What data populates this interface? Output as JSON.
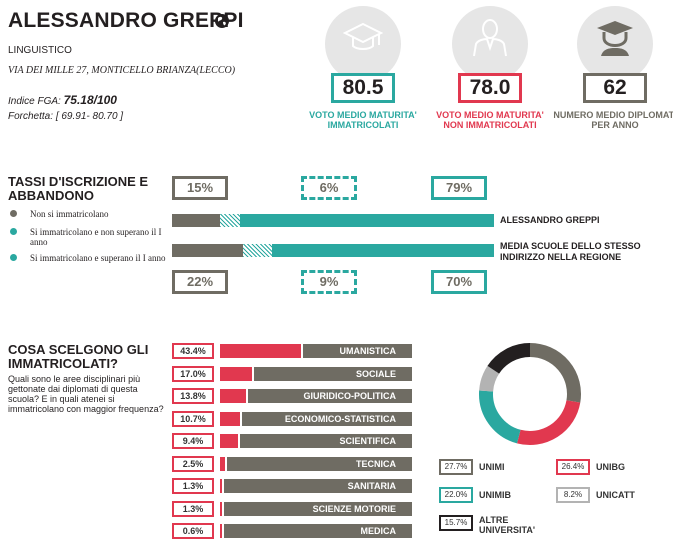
{
  "school": {
    "name": "ALESSANDRO GREPPI",
    "type": "LINGUISTICO",
    "address": "VIA DEI MILLE 27, MONTICELLO BRIANZA(LECCO)",
    "fga_label": "Indice FGA:",
    "fga_value": "75.18/100",
    "range_label": "Forchetta:",
    "range_value": "[ 69.91- 80.70 ]"
  },
  "kpis": [
    {
      "value": "80.5",
      "label": "VOTO MEDIO MATURITA' IMMATRICOLATI",
      "color": "#2aa8a0",
      "icon": "graduation-cap-icon"
    },
    {
      "value": "78.0",
      "label": "VOTO MEDIO MATURITA' NON IMMATRICOLATI",
      "color": "#e1384f",
      "icon": "person-icon"
    },
    {
      "value": "62",
      "label": "NUMERO MEDIO DIPLOMATI PER ANNO",
      "color": "#6f6c63",
      "icon": "graduate-icon"
    }
  ],
  "enrollment": {
    "title": "TASSI D'ISCRIZIONE E ABBANDONO",
    "legend": [
      {
        "text": "Non si immatricolano",
        "color": "#6f6c63"
      },
      {
        "text": "Si immatricolano e non superano il I anno",
        "color": "#2aa8a0"
      },
      {
        "text": "Si immatricolano e superano il I anno",
        "color": "#2aa8a0"
      }
    ],
    "school_bar": {
      "label": "ALESSANDRO GREPPI",
      "not_enrolled": 15,
      "dropout": 6,
      "passed": 79,
      "labels": [
        "15%",
        "6%",
        "79%"
      ]
    },
    "region_bar": {
      "label": "MEDIA SCUOLE DELLO STESSO INDIRIZZO NELLA REGIONE",
      "not_enrolled": 22,
      "dropout": 9,
      "passed": 70,
      "labels": [
        "22%",
        "9%",
        "70%"
      ]
    }
  },
  "choices": {
    "title": "COSA SCELGONO GLI IMMATRICOLATI?",
    "question": "Quali sono le aree disciplinari più gettonate dai diplomati di questa scuola? E in quali atenei si immatricolano con maggior frequenza?",
    "areas": [
      {
        "label": "43.4%",
        "value": 43.4,
        "name": "UMANISTICA"
      },
      {
        "label": "17.0%",
        "value": 17.0,
        "name": "SOCIALE"
      },
      {
        "label": "13.8%",
        "value": 13.8,
        "name": "GIURIDICO-POLITICA"
      },
      {
        "label": "10.7%",
        "value": 10.7,
        "name": "ECONOMICO-STATISTICA"
      },
      {
        "label": "9.4%",
        "value": 9.4,
        "name": "SCIENTIFICA"
      },
      {
        "label": "2.5%",
        "value": 2.5,
        "name": "TECNICA"
      },
      {
        "label": "1.3%",
        "value": 1.3,
        "name": "SANITARIA"
      },
      {
        "label": "1.3%",
        "value": 1.3,
        "name": "SCIENZE MOTORIE"
      },
      {
        "label": "0.6%",
        "value": 0.6,
        "name": "MEDICA"
      }
    ]
  },
  "universities": [
    {
      "label": "27.7%",
      "value": 27.7,
      "name": "UNIMI",
      "color": "#6f6c63"
    },
    {
      "label": "26.4%",
      "value": 26.4,
      "name": "UNIBG",
      "color": "#e1384f"
    },
    {
      "label": "22.0%",
      "value": 22.0,
      "name": "UNIMIB",
      "color": "#2aa8a0"
    },
    {
      "label": "8.2%",
      "value": 8.2,
      "name": "UNICATT",
      "color": "#b3b3b3"
    },
    {
      "label": "15.7%",
      "value": 15.7,
      "name": "ALTRE UNIVERSITA'",
      "color": "#231f20"
    }
  ]
}
